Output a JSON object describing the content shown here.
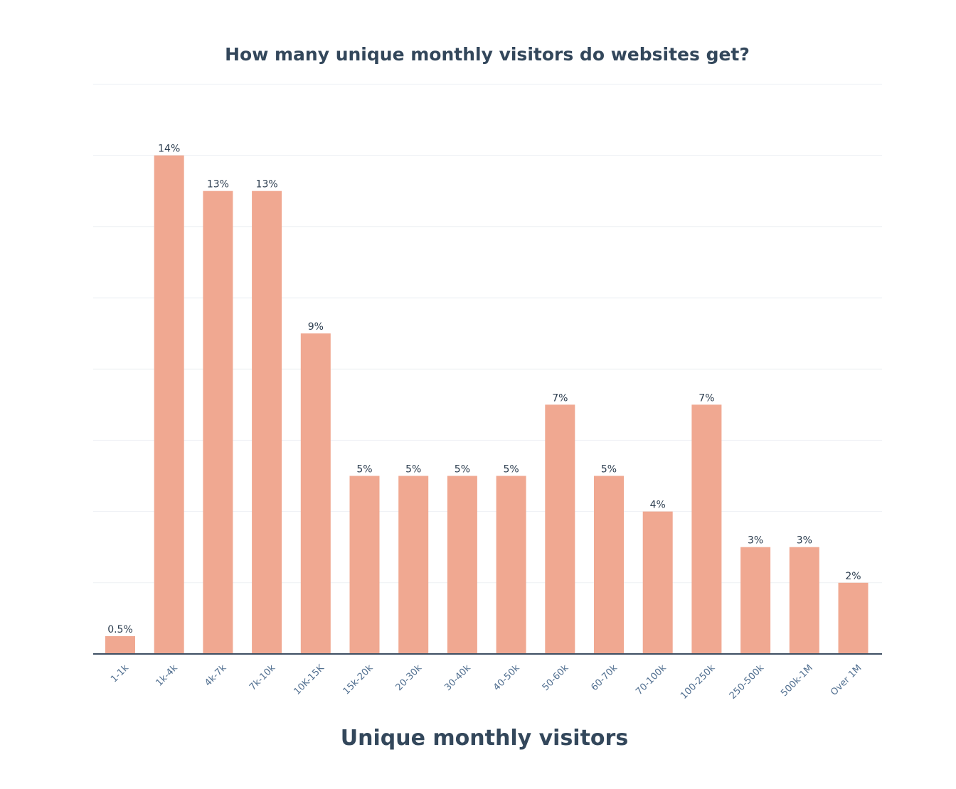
{
  "chart_data": {
    "type": "bar",
    "title": "How many unique monthly visitors do websites get?",
    "xlabel": "Unique monthly visitors",
    "ylabel": "",
    "categories": [
      "1-1k",
      "1k-4k",
      "4k-7k",
      "7k-10k",
      "10K-15K",
      "15k-20k",
      "20-30k",
      "30-40k",
      "40-50k",
      "50-60k",
      "60-70k",
      "70-100k",
      "100-250k",
      "250-500k",
      "500k-1M",
      "Over 1M"
    ],
    "values": [
      0.5,
      14,
      13,
      13,
      9,
      5,
      5,
      5,
      5,
      7,
      5,
      4,
      7,
      3,
      3,
      2
    ],
    "value_labels": [
      "0.5%",
      "14%",
      "13%",
      "13%",
      "9%",
      "5%",
      "5%",
      "5%",
      "5%",
      "7%",
      "5%",
      "4%",
      "7%",
      "3%",
      "3%",
      "2%"
    ],
    "ylim": [
      0,
      16
    ],
    "grid": true,
    "legend": "none"
  },
  "colors": {
    "bar": "#f0a891",
    "title": "#33475b",
    "axis": "#3d4f63",
    "tick_label": "#516f90",
    "value_label": "#2d3e50",
    "grid": "#eef1f4"
  }
}
